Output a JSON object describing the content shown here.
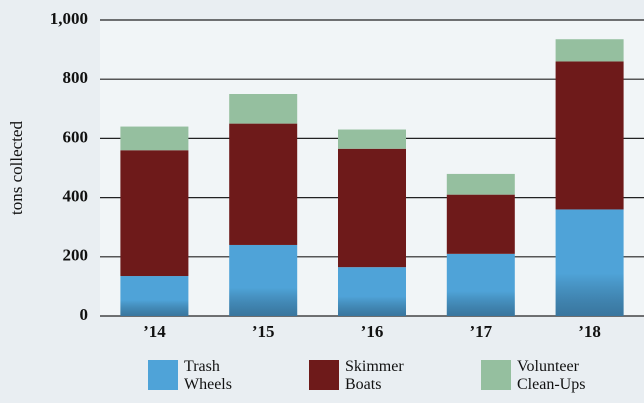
{
  "chart_data": {
    "type": "stacked_bar",
    "ylabel": "tons collected",
    "categories": [
      "’14",
      "’15",
      "’16",
      "’17",
      "’18"
    ],
    "series": [
      {
        "name": "Trash Wheels",
        "color": "#4fa3d8",
        "values": [
          135,
          240,
          165,
          210,
          360
        ]
      },
      {
        "name": "Skimmer Boats",
        "color": "#6e1a1a",
        "values": [
          425,
          410,
          400,
          200,
          500
        ]
      },
      {
        "name": "Volunteer Clean-Ups",
        "color": "#95bf9f",
        "values": [
          80,
          100,
          65,
          70,
          75
        ]
      }
    ],
    "ylim": [
      0,
      1000
    ],
    "yticks": [
      0,
      200,
      400,
      600,
      800,
      {
        "value": 1000,
        "label": "1,000"
      }
    ],
    "grid": true
  }
}
